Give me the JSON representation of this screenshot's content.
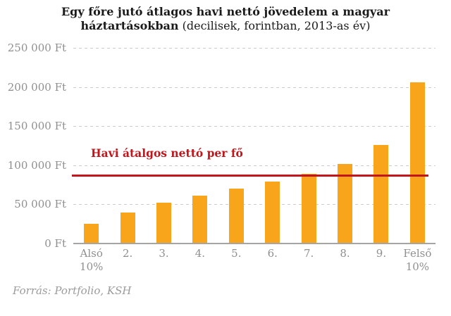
{
  "chart_data": {
    "type": "bar",
    "title": {
      "line1": "Egy főre jutó átlagos havi nettó jövedelem a magyar",
      "line2_bold": "háztartásokban",
      "line2_note": "(decilisek, forintban, 2013-as év)"
    },
    "categories": [
      "Alsó 10%",
      "2.",
      "3.",
      "4.",
      "5.",
      "6.",
      "7.",
      "8.",
      "9.",
      "Felső 10%"
    ],
    "values": [
      25000,
      40000,
      52000,
      61000,
      70000,
      79000,
      89000,
      102000,
      126000,
      206000
    ],
    "xlabel": "",
    "ylabel": "",
    "ylim": [
      0,
      250000
    ],
    "y_ticks": [
      {
        "value": 250000,
        "label": "250 000 Ft"
      },
      {
        "value": 200000,
        "label": "200 000 Ft"
      },
      {
        "value": 150000,
        "label": "150 000 Ft"
      },
      {
        "value": 100000,
        "label": "100 000 Ft"
      },
      {
        "value": 50000,
        "label": "50 000 Ft"
      },
      {
        "value": 0,
        "label": "0 Ft"
      }
    ],
    "grid": "horizontal-dashed",
    "legend_position": "none",
    "reference_line": {
      "value": 87000,
      "label": "Havi átalgos nettó per fő"
    },
    "source": "Forrás: Portfolio, KSH",
    "colors": {
      "bar": "#F9A51B",
      "reference": "#C3161C",
      "grid": "#CBCBCB",
      "axis_text": "#8F8F8F",
      "baseline": "#A5A5A5",
      "title": "#1B1B1B",
      "source_text": "#9B9B9B",
      "background": "#FFFFFF"
    }
  }
}
